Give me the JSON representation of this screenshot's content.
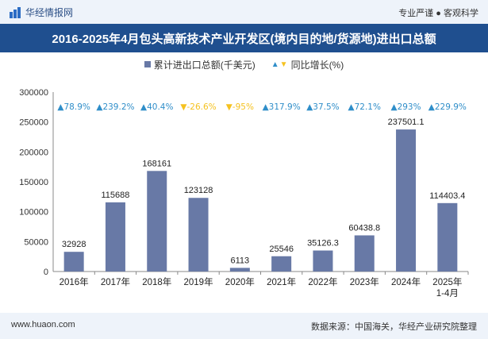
{
  "header": {
    "brand": "华经情报网",
    "tagline": "专业严谨 ● 客观科学"
  },
  "title": "2016-2025年4月包头高新技术产业开发区(境内目的地/货源地)进出口总额",
  "legend": {
    "bar_label": "累计进出口总额(千美元)",
    "growth_label": "同比增长(%)"
  },
  "chart_data": {
    "type": "bar",
    "categories": [
      "2016年",
      "2017年",
      "2018年",
      "2019年",
      "2020年",
      "2021年",
      "2022年",
      "2023年",
      "2024年",
      "2025年\n1-4月"
    ],
    "series": [
      {
        "name": "累计进出口总额(千美元)",
        "values": [
          32928,
          115688,
          168161,
          123128,
          6113,
          25546,
          35126.3,
          60438.8,
          237501.1,
          114403.4
        ],
        "value_labels": [
          "32928",
          "115688",
          "168161",
          "123128",
          "6113",
          "25546",
          "35126.3",
          "60438.8",
          "237501.1",
          "114403.4"
        ],
        "color": "#6879a6"
      },
      {
        "name": "同比增长(%)",
        "values": [
          78.9,
          239.2,
          40.4,
          -26.6,
          -95,
          317.9,
          37.5,
          72.1,
          293,
          229.9
        ],
        "value_labels": [
          "78.9%",
          "239.2%",
          "40.4%",
          "-26.6%",
          "-95%",
          "317.9%",
          "37.5%",
          "72.1%",
          "293%",
          "229.9%"
        ],
        "up_color": "#2f8ec9",
        "down_color": "#f5c220"
      }
    ],
    "yticks": [
      "0",
      "50000",
      "100000",
      "150000",
      "200000",
      "250000",
      "300000"
    ],
    "ylim": [
      0,
      300000
    ],
    "grid": false
  },
  "footer": {
    "website": "www.huaon.com",
    "source": "数据来源：中国海关，华经产业研究院整理"
  }
}
